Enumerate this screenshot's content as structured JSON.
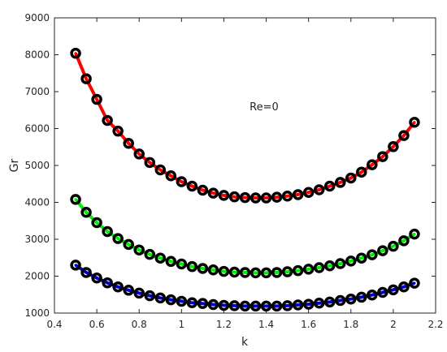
{
  "chart_data": {
    "type": "line",
    "title": "",
    "xlabel": "k",
    "ylabel": "Gr",
    "xlim": [
      0.4,
      2.2
    ],
    "ylim": [
      1000,
      9000
    ],
    "xticks": [
      0.4,
      0.6,
      0.8,
      1,
      1.2,
      1.4,
      1.6,
      1.8,
      2,
      2.2
    ],
    "yticks": [
      1000,
      2000,
      3000,
      4000,
      5000,
      6000,
      7000,
      8000,
      9000
    ],
    "xtick_labels": [
      "0.4",
      "0.6",
      "0.8",
      "1",
      "1.2",
      "1.4",
      "1.6",
      "1.8",
      "2",
      "2.2"
    ],
    "ytick_labels": [
      "1000",
      "2000",
      "3000",
      "4000",
      "5000",
      "6000",
      "7000",
      "8000",
      "9000"
    ],
    "grid": false,
    "annotation": {
      "text": "Re=0",
      "x": 1.39,
      "y": 6600
    },
    "x": [
      0.5,
      0.55,
      0.6,
      0.65,
      0.7,
      0.75,
      0.8,
      0.85,
      0.9,
      0.95,
      1.0,
      1.05,
      1.1,
      1.15,
      1.2,
      1.25,
      1.3,
      1.35,
      1.4,
      1.45,
      1.5,
      1.55,
      1.6,
      1.65,
      1.7,
      1.75,
      1.8,
      1.85,
      1.9,
      1.95,
      2.0,
      2.05,
      2.1
    ],
    "series": [
      {
        "color": "#ff0000",
        "values": [
          8040,
          7350,
          6790,
          6220,
          5930,
          5600,
          5310,
          5080,
          4880,
          4720,
          4560,
          4440,
          4330,
          4250,
          4190,
          4150,
          4130,
          4120,
          4120,
          4140,
          4170,
          4210,
          4270,
          4340,
          4440,
          4540,
          4660,
          4820,
          5020,
          5240,
          5510,
          5810,
          6170
        ]
      },
      {
        "color": "#00ee00",
        "values": [
          4080,
          3730,
          3450,
          3210,
          3020,
          2860,
          2710,
          2590,
          2490,
          2400,
          2330,
          2260,
          2210,
          2170,
          2130,
          2110,
          2100,
          2090,
          2090,
          2100,
          2120,
          2150,
          2190,
          2230,
          2280,
          2340,
          2410,
          2490,
          2580,
          2690,
          2810,
          2960,
          3140
        ]
      },
      {
        "color": "#0000cc",
        "values": [
          2300,
          2100,
          1950,
          1820,
          1710,
          1620,
          1540,
          1470,
          1410,
          1360,
          1320,
          1280,
          1260,
          1230,
          1210,
          1200,
          1190,
          1190,
          1190,
          1190,
          1200,
          1220,
          1240,
          1270,
          1300,
          1340,
          1380,
          1430,
          1490,
          1560,
          1630,
          1710,
          1810
        ]
      }
    ],
    "marker_color": "#000000"
  }
}
